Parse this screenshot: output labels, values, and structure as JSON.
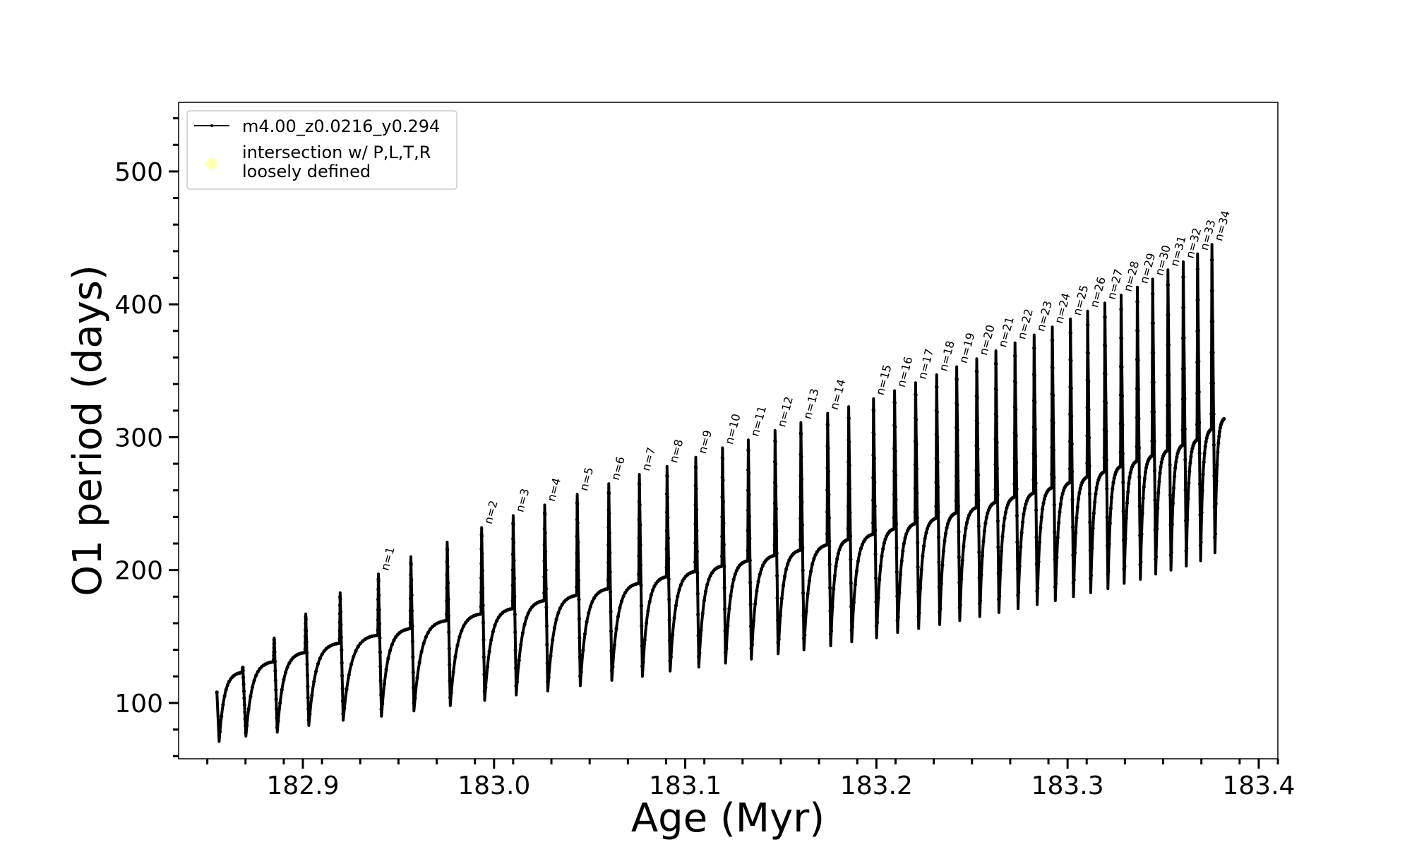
{
  "chart_data": {
    "type": "line",
    "xlabel": "Age (Myr)",
    "ylabel": "O1 period (days)",
    "xlim": [
      182.835,
      183.41
    ],
    "ylim": [
      58,
      552
    ],
    "xticks": [
      "182.9",
      "183.0",
      "183.1",
      "183.2",
      "183.3",
      "183.4"
    ],
    "xtick_values": [
      182.9,
      183.0,
      183.1,
      183.2,
      183.3,
      183.4
    ],
    "yticks": [
      "100",
      "200",
      "300",
      "400",
      "500"
    ],
    "ytick_values": [
      100,
      200,
      300,
      400,
      500
    ],
    "grid": false,
    "legend_position": "top-left",
    "legend": {
      "series_label": "m4.00_z0.0216_y0.294",
      "marker_label_line1": "intersection w/ P,L,T,R",
      "marker_label_line2": "loosely defined",
      "marker_color": "#ffffb3"
    },
    "series": [
      {
        "name": "m4.00_z0.0216_y0.294",
        "color": "#000000",
        "start": {
          "age": 182.855,
          "period": 108
        },
        "end": {
          "age": 183.382,
          "period": 314
        },
        "pulses": [
          {
            "age": 182.8686,
            "peak": 127,
            "trough": 75,
            "prev_top": 123
          },
          {
            "age": 182.885,
            "peak": 149,
            "trough": 78,
            "prev_top": 131
          },
          {
            "age": 182.9015,
            "peak": 167,
            "trough": 83,
            "prev_top": 138
          },
          {
            "age": 182.9195,
            "peak": 183,
            "trough": 87,
            "prev_top": 145
          },
          {
            "age": 182.9395,
            "peak": 197,
            "trough": 90,
            "prev_top": 151
          },
          {
            "age": 182.9565,
            "peak": 210,
            "trough": 94,
            "prev_top": 156
          },
          {
            "age": 182.9755,
            "peak": 221,
            "trough": 98,
            "prev_top": 162
          },
          {
            "age": 182.9935,
            "peak": 232,
            "trough": 102,
            "prev_top": 167
          },
          {
            "age": 183.01,
            "peak": 241,
            "trough": 106,
            "prev_top": 171
          },
          {
            "age": 183.0265,
            "peak": 249,
            "trough": 109,
            "prev_top": 177
          },
          {
            "age": 183.0435,
            "peak": 257,
            "trough": 113,
            "prev_top": 181
          },
          {
            "age": 183.06,
            "peak": 265,
            "trough": 117,
            "prev_top": 186
          },
          {
            "age": 183.076,
            "peak": 272,
            "trough": 120,
            "prev_top": 190
          },
          {
            "age": 183.0905,
            "peak": 278,
            "trough": 124,
            "prev_top": 195
          },
          {
            "age": 183.1055,
            "peak": 285,
            "trough": 127,
            "prev_top": 199
          },
          {
            "age": 183.1195,
            "peak": 292,
            "trough": 130,
            "prev_top": 203
          },
          {
            "age": 183.133,
            "peak": 298,
            "trough": 133,
            "prev_top": 207
          },
          {
            "age": 183.147,
            "peak": 305,
            "trough": 137,
            "prev_top": 211
          },
          {
            "age": 183.1605,
            "peak": 311,
            "trough": 140,
            "prev_top": 215
          },
          {
            "age": 183.1745,
            "peak": 318,
            "trough": 143,
            "prev_top": 219
          },
          {
            "age": 183.1855,
            "peak": 323,
            "trough": 146,
            "prev_top": 223
          },
          {
            "age": 183.1985,
            "peak": 329,
            "trough": 149,
            "prev_top": 227
          },
          {
            "age": 183.2095,
            "peak": 335,
            "trough": 153,
            "prev_top": 231
          },
          {
            "age": 183.2205,
            "peak": 341,
            "trough": 156,
            "prev_top": 235
          },
          {
            "age": 183.2315,
            "peak": 347,
            "trough": 159,
            "prev_top": 239
          },
          {
            "age": 183.242,
            "peak": 353,
            "trough": 162,
            "prev_top": 243
          },
          {
            "age": 183.2525,
            "peak": 359,
            "trough": 165,
            "prev_top": 247
          },
          {
            "age": 183.2625,
            "peak": 365,
            "trough": 168,
            "prev_top": 251
          },
          {
            "age": 183.2725,
            "peak": 371,
            "trough": 171,
            "prev_top": 255
          },
          {
            "age": 183.2825,
            "peak": 377,
            "trough": 174,
            "prev_top": 258
          },
          {
            "age": 183.292,
            "peak": 383,
            "trough": 177,
            "prev_top": 262
          },
          {
            "age": 183.3015,
            "peak": 389,
            "trough": 180,
            "prev_top": 266
          },
          {
            "age": 183.3105,
            "peak": 395,
            "trough": 183,
            "prev_top": 270
          },
          {
            "age": 183.3195,
            "peak": 401,
            "trough": 186,
            "prev_top": 274
          },
          {
            "age": 183.328,
            "peak": 407,
            "trough": 190,
            "prev_top": 278
          },
          {
            "age": 183.3365,
            "peak": 413,
            "trough": 193,
            "prev_top": 282
          },
          {
            "age": 183.3445,
            "peak": 419,
            "trough": 197,
            "prev_top": 286
          },
          {
            "age": 183.3525,
            "peak": 426,
            "trough": 200,
            "prev_top": 290
          },
          {
            "age": 183.3605,
            "peak": 432,
            "trough": 203,
            "prev_top": 294
          },
          {
            "age": 183.368,
            "peak": 438,
            "trough": 207,
            "prev_top": 298
          },
          {
            "age": 183.3755,
            "peak": 445,
            "trough": 213,
            "prev_top": 306
          }
        ]
      }
    ],
    "annotations": [
      {
        "text": "n=1",
        "age": 182.9395,
        "period": 197
      },
      {
        "text": "n=2",
        "age": 182.9935,
        "period": 232
      },
      {
        "text": "n=3",
        "age": 183.01,
        "period": 241
      },
      {
        "text": "n=4",
        "age": 183.0265,
        "period": 249
      },
      {
        "text": "n=5",
        "age": 183.0435,
        "period": 257
      },
      {
        "text": "n=6",
        "age": 183.06,
        "period": 265
      },
      {
        "text": "n=7",
        "age": 183.076,
        "period": 272
      },
      {
        "text": "n=8",
        "age": 183.0905,
        "period": 278
      },
      {
        "text": "n=9",
        "age": 183.1055,
        "period": 285
      },
      {
        "text": "n=10",
        "age": 183.1195,
        "period": 292
      },
      {
        "text": "n=11",
        "age": 183.133,
        "period": 298
      },
      {
        "text": "n=12",
        "age": 183.147,
        "period": 305
      },
      {
        "text": "n=13",
        "age": 183.1605,
        "period": 311
      },
      {
        "text": "n=14",
        "age": 183.1745,
        "period": 318
      },
      {
        "text": "n=15",
        "age": 183.1985,
        "period": 329
      },
      {
        "text": "n=16",
        "age": 183.2095,
        "period": 335
      },
      {
        "text": "n=17",
        "age": 183.2205,
        "period": 341
      },
      {
        "text": "n=18",
        "age": 183.2315,
        "period": 347
      },
      {
        "text": "n=19",
        "age": 183.242,
        "period": 353
      },
      {
        "text": "n=20",
        "age": 183.2525,
        "period": 359
      },
      {
        "text": "n=21",
        "age": 183.2625,
        "period": 365
      },
      {
        "text": "n=22",
        "age": 183.2725,
        "period": 371
      },
      {
        "text": "n=23",
        "age": 183.2825,
        "period": 377
      },
      {
        "text": "n=24",
        "age": 183.292,
        "period": 383
      },
      {
        "text": "n=25",
        "age": 183.3015,
        "period": 389
      },
      {
        "text": "n=26",
        "age": 183.3105,
        "period": 395
      },
      {
        "text": "n=27",
        "age": 183.3195,
        "period": 401
      },
      {
        "text": "n=28",
        "age": 183.328,
        "period": 407
      },
      {
        "text": "n=29",
        "age": 183.3365,
        "period": 413
      },
      {
        "text": "n=30",
        "age": 183.3445,
        "period": 419
      },
      {
        "text": "n=31",
        "age": 183.3525,
        "period": 426
      },
      {
        "text": "n=32",
        "age": 183.3605,
        "period": 432
      },
      {
        "text": "n=33",
        "age": 183.368,
        "period": 438
      },
      {
        "text": "n=34",
        "age": 183.3755,
        "period": 445
      }
    ]
  }
}
